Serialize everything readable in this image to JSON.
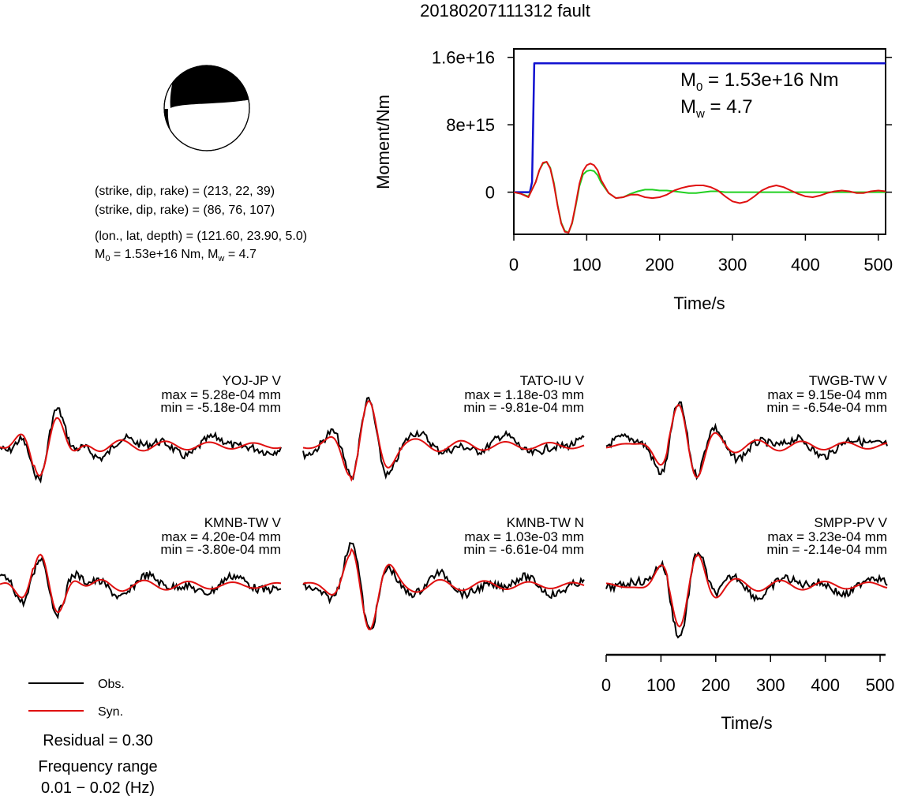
{
  "title": "20180207111312 fault",
  "mechanism": {
    "plane1": "(strike, dip, rake) = (213, 22, 39)",
    "plane2": "(strike, dip, rake) = (86, 76, 107)",
    "location": "(lon., lat, depth) = (121.60, 23.90, 5.0)",
    "m0_line_a": "M",
    "m0_line_sub": "0",
    "m0_line_b": " = 1.53e+16 Nm, M",
    "m0_line_sub2": "w",
    "m0_line_c": " = 4.7"
  },
  "colors": {
    "observed": "#000000",
    "synthetic": "#e01010",
    "moment": "#1010d0",
    "moment_rate_alt": "#20d020"
  },
  "chart_data": [
    {
      "type": "line",
      "title": "",
      "xlabel": "Time/s",
      "ylabel": "Moment/Nm",
      "xlim": [
        0,
        510
      ],
      "ylim": [
        -5000000000000000.0,
        1.7e+16
      ],
      "xticks": [
        0,
        100,
        200,
        300,
        400,
        500
      ],
      "yticks": [
        0,
        8000000000000000.0,
        1.6e+16
      ],
      "ytick_labels": [
        "0",
        "8e+15",
        "1.6e+16"
      ],
      "annotation": {
        "m0_sym": "M",
        "m0_sub": "0",
        "m0_val": " = 1.53e+16 Nm",
        "mw_sym": "M",
        "mw_sub": "w",
        "mw_val": " = 4.7"
      },
      "series": [
        {
          "color": "#1010d0",
          "x": [
            0,
            22,
            25,
            28,
            510
          ],
          "y": [
            0,
            0,
            1200000000000000.0,
            1.53e+16,
            1.53e+16
          ]
        },
        {
          "color": "#20d020",
          "x": [
            0,
            10,
            20,
            30,
            35,
            40,
            45,
            50,
            55,
            60,
            65,
            70,
            75,
            80,
            85,
            90,
            95,
            100,
            105,
            110,
            115,
            120,
            130,
            140,
            150,
            160,
            170,
            180,
            190,
            200,
            210,
            220,
            230,
            240,
            250,
            260,
            270,
            280,
            290,
            300,
            320,
            340,
            360,
            380,
            400,
            420,
            440,
            460,
            480,
            500,
            510
          ],
          "y": [
            0,
            -200000000000000.0,
            -500000000000000.0,
            1200000000000000.0,
            2600000000000000.0,
            3400000000000000.0,
            3600000000000000.0,
            2900000000000000.0,
            1100000000000000.0,
            -1500000000000000.0,
            -3600000000000000.0,
            -4600000000000000.0,
            -4800000000000000.0,
            -3700000000000000.0,
            -1600000000000000.0,
            700000000000000.0,
            2100000000000000.0,
            2500000000000000.0,
            2600000000000000.0,
            2500000000000000.0,
            2000000000000000.0,
            1100000000000000.0,
            -100000000000000.0,
            -700000000000000.0,
            -600000000000000.0,
            -200000000000000.0,
            100000000000000.0,
            300000000000000.0,
            300000000000000.0,
            200000000000000.0,
            200000000000000.0,
            100000000000000.0,
            0,
            -100000000000000.0,
            -100000000000000.0,
            0,
            100000000000000.0,
            100000000000000.0,
            0,
            0,
            0,
            0,
            0,
            0,
            0,
            0,
            0,
            0,
            0,
            0,
            0
          ]
        },
        {
          "color": "#e01010",
          "x": [
            0,
            10,
            20,
            30,
            35,
            40,
            45,
            50,
            55,
            60,
            65,
            70,
            75,
            80,
            85,
            90,
            95,
            100,
            105,
            110,
            115,
            120,
            130,
            140,
            150,
            160,
            170,
            180,
            190,
            200,
            210,
            220,
            230,
            240,
            250,
            260,
            270,
            280,
            290,
            300,
            310,
            320,
            330,
            340,
            350,
            360,
            370,
            380,
            390,
            400,
            410,
            420,
            430,
            440,
            450,
            460,
            470,
            480,
            490,
            500,
            510
          ],
          "y": [
            0,
            -200000000000000.0,
            -600000000000000.0,
            1200000000000000.0,
            2600000000000000.0,
            3500000000000000.0,
            3600000000000000.0,
            2800000000000000.0,
            900000000000000.0,
            -1600000000000000.0,
            -3700000000000000.0,
            -4700000000000000.0,
            -4800000000000000.0,
            -3600000000000000.0,
            -1400000000000000.0,
            1000000000000000.0,
            2500000000000000.0,
            3200000000000000.0,
            3400000000000000.0,
            3200000000000000.0,
            2600000000000000.0,
            1400000000000000.0,
            -100000000000000.0,
            -700000000000000.0,
            -600000000000000.0,
            -300000000000000.0,
            -300000000000000.0,
            -600000000000000.0,
            -700000000000000.0,
            -600000000000000.0,
            -300000000000000.0,
            200000000000000.0,
            500000000000000.0,
            700000000000000.0,
            800000000000000.0,
            800000000000000.0,
            600000000000000.0,
            200000000000000.0,
            -500000000000000.0,
            -1100000000000000.0,
            -1300000000000000.0,
            -1100000000000000.0,
            -500000000000000.0,
            200000000000000.0,
            600000000000000.0,
            800000000000000.0,
            600000000000000.0,
            200000000000000.0,
            -200000000000000.0,
            -500000000000000.0,
            -600000000000000.0,
            -400000000000000.0,
            -100000000000000.0,
            100000000000000.0,
            200000000000000.0,
            100000000000000.0,
            -100000000000000.0,
            -100000000000000.0,
            100000000000000.0,
            200000000000000.0,
            100000000000000.0
          ]
        }
      ]
    },
    {
      "type": "line",
      "title": "",
      "xlabel": "Time/s",
      "xlim": [
        0,
        510
      ],
      "xticks": [
        0,
        100,
        200,
        300,
        400,
        500
      ],
      "panels": [
        {
          "station": "YOJ-JP V",
          "max": "max = 5.28e-04 mm",
          "min": "min = -5.18e-04 mm"
        },
        {
          "station": "TATO-IU V",
          "max": "max = 1.18e-03 mm",
          "min": "min = -9.81e-04 mm"
        },
        {
          "station": "TWGB-TW V",
          "max": "max = 9.15e-04 mm",
          "min": "min = -6.54e-04 mm"
        },
        {
          "station": "KMNB-TW V",
          "max": "max = 4.20e-04 mm",
          "min": "min = -3.80e-04 mm"
        },
        {
          "station": "KMNB-TW N",
          "max": "max = 1.03e-03 mm",
          "min": "min = -6.61e-04 mm"
        },
        {
          "station": "SMPP-PV V",
          "max": "max = 3.23e-04 mm",
          "min": "min = -2.14e-04 mm"
        }
      ],
      "legend": {
        "observed": "Obs.",
        "synthetic": "Syn."
      }
    }
  ],
  "residual": "Residual = 0.30",
  "frequency_label": "Frequency range",
  "frequency_value": "0.01 − 0.02 (Hz)"
}
